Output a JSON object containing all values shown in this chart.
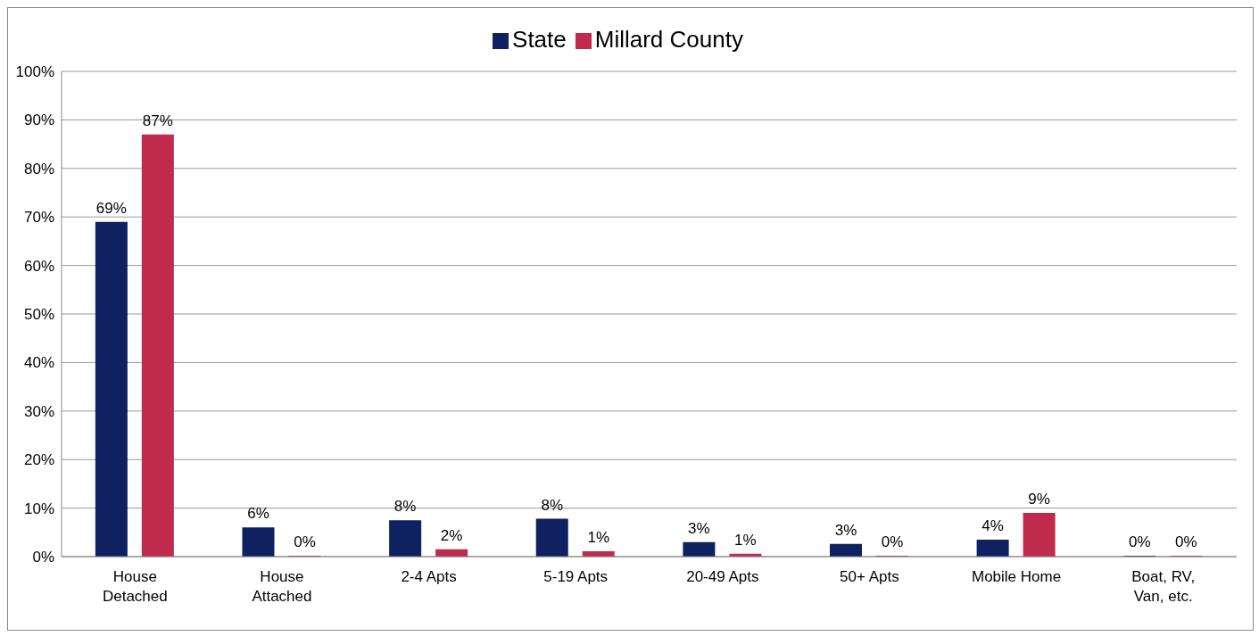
{
  "chart_data": {
    "type": "bar",
    "categories": [
      "House Detached",
      "House Attached",
      "2-4 Apts",
      "5-19 Apts",
      "20-49 Apts",
      "50+ Apts",
      "Mobile Home",
      "Boat, RV, Van, etc."
    ],
    "series": [
      {
        "name": "State",
        "color": "#0f2160",
        "values": [
          69,
          6,
          7.5,
          7.8,
          3,
          2.6,
          3.5,
          0
        ],
        "value_labels": [
          "69%",
          "6%",
          "8%",
          "8%",
          "3%",
          "3%",
          "4%",
          "0%"
        ]
      },
      {
        "name": "Millard County",
        "color": "#c02a4c",
        "values": [
          87,
          0.2,
          1.5,
          1.1,
          0.6,
          0,
          9,
          0
        ],
        "value_labels": [
          "87%",
          "0%",
          "2%",
          "1%",
          "1%",
          "0%",
          "9%",
          "0%"
        ]
      }
    ],
    "ylim": [
      0,
      100
    ],
    "yticks": [
      {
        "value": 0,
        "label": "0%"
      },
      {
        "value": 10,
        "label": "10%"
      },
      {
        "value": 20,
        "label": "20%"
      },
      {
        "value": 30,
        "label": "30%"
      },
      {
        "value": 40,
        "label": "40%"
      },
      {
        "value": 50,
        "label": "50%"
      },
      {
        "value": 60,
        "label": "60%"
      },
      {
        "value": 70,
        "label": "70%"
      },
      {
        "value": 80,
        "label": "80%"
      },
      {
        "value": 90,
        "label": "90%"
      },
      {
        "value": 100,
        "label": "100%"
      }
    ],
    "grid": "y",
    "legend": "top"
  }
}
